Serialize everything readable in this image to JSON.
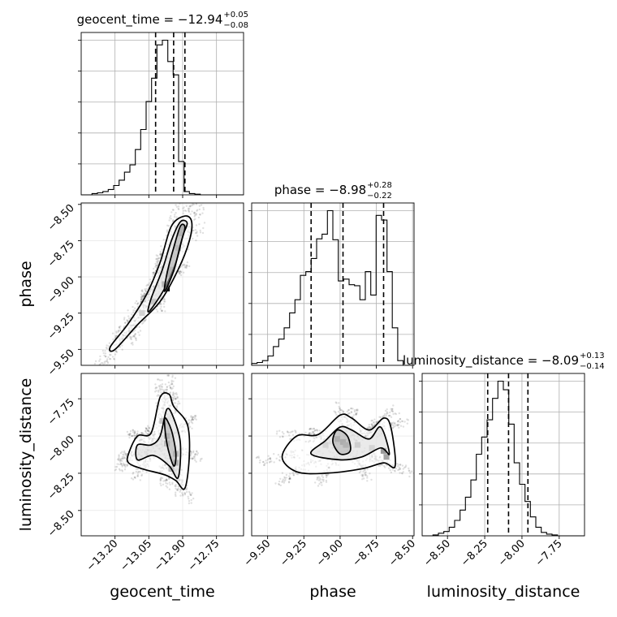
{
  "chart_data": {
    "type": "corner",
    "parameters": [
      "geocent_time",
      "phase",
      "luminosity_distance"
    ],
    "grid": true,
    "titles": [
      {
        "param": "geocent_time",
        "text": "geocent_time = −12.94",
        "upper": "+0.05",
        "lower": "−0.08",
        "median": -12.94,
        "q_low": -13.02,
        "q_high": -12.89
      },
      {
        "param": "phase",
        "text": "phase = −8.98",
        "upper": "+0.28",
        "lower": "−0.22",
        "median": -8.98,
        "q_low": -9.2,
        "q_high": -8.7
      },
      {
        "param": "luminosity_distance",
        "text": "luminosity_distance = −8.09",
        "upper": "+0.13",
        "lower": "−0.14",
        "median": -8.09,
        "q_low": -8.23,
        "q_high": -7.96
      }
    ],
    "axes": {
      "geocent_time": {
        "range": [
          -13.35,
          -12.63
        ],
        "ticks": [
          -13.2,
          -13.05,
          -12.9,
          -12.75
        ],
        "tick_labels": [
          "−13.20",
          "−13.05",
          "−12.90",
          "−12.75"
        ],
        "label": "geocent_time"
      },
      "phase": {
        "range": [
          -9.61,
          -8.49
        ],
        "ticks": [
          -9.5,
          -9.25,
          -9.0,
          -8.75,
          -8.5
        ],
        "tick_labels": [
          "−9.50",
          "−9.25",
          "−9.00",
          "−8.75",
          "−8.50"
        ],
        "label": "phase"
      },
      "luminosity_distance": {
        "range": [
          -8.67,
          -7.58
        ],
        "ticks": [
          -8.5,
          -8.25,
          -8.0,
          -7.75
        ],
        "tick_labels": [
          "−8.50",
          "−8.25",
          "−8.00",
          "−7.75"
        ],
        "label": "luminosity_distance"
      }
    },
    "histograms": {
      "geocent_time": {
        "bins": [
          -13.35,
          -13.326,
          -13.302,
          -13.278,
          -13.254,
          -13.23,
          -13.206,
          -13.182,
          -13.158,
          -13.134,
          -13.11,
          -13.086,
          -13.062,
          -13.038,
          -13.014,
          -12.99,
          -12.966,
          -12.942,
          -12.918,
          -12.894,
          -12.87,
          -12.846,
          -12.822,
          -12.798,
          -12.774,
          -12.75,
          -12.726,
          -12.702,
          -12.678,
          -12.654,
          -12.63
        ],
        "counts": [
          0,
          0,
          2,
          3,
          5,
          8,
          14,
          22,
          34,
          45,
          68,
          98,
          140,
          175,
          225,
          232,
          200,
          180,
          50,
          5,
          2,
          1,
          0,
          0,
          0,
          0,
          0,
          0,
          0,
          0
        ]
      },
      "phase": {
        "bins": [
          -9.61,
          -9.5727,
          -9.5353,
          -9.498,
          -9.4607,
          -9.4233,
          -9.386,
          -9.3487,
          -9.3113,
          -9.274,
          -9.2367,
          -9.1993,
          -9.162,
          -9.1247,
          -9.0873,
          -9.05,
          -9.0127,
          -8.9753,
          -8.938,
          -8.9007,
          -8.8633,
          -8.826,
          -8.7887,
          -8.7513,
          -8.714,
          -8.6767,
          -8.64,
          -8.6027,
          -8.5653,
          -8.528,
          -8.49
        ],
        "counts": [
          2,
          3,
          5,
          10,
          20,
          28,
          40,
          56,
          70,
          96,
          100,
          114,
          135,
          140,
          165,
          134,
          90,
          92,
          86,
          85,
          70,
          100,
          75,
          160,
          155,
          100,
          40,
          5,
          0,
          0
        ]
      },
      "luminosity_distance": {
        "bins": [
          -8.67,
          -8.6337,
          -8.5973,
          -8.561,
          -8.5247,
          -8.4883,
          -8.452,
          -8.4157,
          -8.3793,
          -8.343,
          -8.3067,
          -8.2703,
          -8.234,
          -8.1977,
          -8.1613,
          -8.125,
          -8.0887,
          -8.0523,
          -8.016,
          -7.9797,
          -7.9433,
          -7.907,
          -7.8707,
          -7.8343,
          -7.798,
          -7.7617,
          -7.7253,
          -7.689,
          -7.6527,
          -7.6163,
          -7.58
        ],
        "counts": [
          0,
          0,
          1,
          3,
          5,
          10,
          18,
          30,
          45,
          65,
          95,
          115,
          135,
          160,
          180,
          170,
          130,
          85,
          60,
          40,
          22,
          10,
          4,
          2,
          1,
          0,
          0,
          0,
          0,
          0
        ]
      }
    },
    "pairs": [
      {
        "x": "geocent_time",
        "y": "phase",
        "contours": [
          [
            [
              -13.2,
              -9.5
            ],
            [
              -13.1,
              -9.33
            ],
            [
              -13.0,
              -9.17
            ],
            [
              -12.92,
              -8.95
            ],
            [
              -12.87,
              -8.75
            ],
            [
              -12.86,
              -8.62
            ],
            [
              -12.89,
              -8.58
            ],
            [
              -12.95,
              -8.65
            ],
            [
              -13.0,
              -8.9
            ],
            [
              -13.06,
              -9.12
            ],
            [
              -13.14,
              -9.32
            ],
            [
              -13.22,
              -9.48
            ]
          ],
          [
            [
              -13.05,
              -9.24
            ],
            [
              -12.98,
              -9.08
            ],
            [
              -12.93,
              -8.9
            ],
            [
              -12.9,
              -8.72
            ],
            [
              -12.88,
              -8.63
            ],
            [
              -12.91,
              -8.62
            ],
            [
              -12.95,
              -8.75
            ],
            [
              -12.99,
              -8.95
            ],
            [
              -13.04,
              -9.15
            ]
          ],
          [
            [
              -12.98,
              -9.1
            ],
            [
              -12.94,
              -8.96
            ],
            [
              -12.91,
              -8.78
            ],
            [
              -12.89,
              -8.66
            ],
            [
              -12.91,
              -8.65
            ],
            [
              -12.94,
              -8.8
            ],
            [
              -12.97,
              -8.98
            ]
          ]
        ],
        "density": [
          [
            -12.98,
            -9.05,
            0.9
          ],
          [
            -12.97,
            -9.08,
            1.0
          ],
          [
            -12.96,
            -8.98,
            0.8
          ],
          [
            -12.95,
            -8.95,
            0.7
          ],
          [
            -12.91,
            -8.7,
            0.8
          ],
          [
            -12.9,
            -8.66,
            0.9
          ],
          [
            -12.92,
            -8.8,
            0.6
          ],
          [
            -13.03,
            -9.17,
            0.6
          ],
          [
            -13.08,
            -9.25,
            0.4
          ]
        ]
      },
      {
        "x": "geocent_time",
        "y": "luminosity_distance",
        "contours": [
          [
            [
              -13.14,
              -8.12
            ],
            [
              -13.1,
              -8.0
            ],
            [
              -13.04,
              -7.98
            ],
            [
              -13.0,
              -7.74
            ],
            [
              -12.96,
              -7.72
            ],
            [
              -12.94,
              -7.8
            ],
            [
              -12.88,
              -7.92
            ],
            [
              -12.87,
              -8.12
            ],
            [
              -12.89,
              -8.35
            ],
            [
              -12.93,
              -8.3
            ],
            [
              -12.98,
              -8.26
            ],
            [
              -13.08,
              -8.22
            ],
            [
              -13.14,
              -8.18
            ]
          ],
          [
            [
              -13.1,
              -8.16
            ],
            [
              -13.1,
              -8.06
            ],
            [
              -13.04,
              -8.06
            ],
            [
              -13.0,
              -8.0
            ],
            [
              -12.97,
              -7.82
            ],
            [
              -12.94,
              -7.88
            ],
            [
              -12.91,
              -8.05
            ],
            [
              -12.92,
              -8.28
            ],
            [
              -12.96,
              -8.2
            ],
            [
              -13.03,
              -8.13
            ]
          ],
          [
            [
              -12.98,
              -7.88
            ],
            [
              -12.95,
              -7.96
            ],
            [
              -12.93,
              -8.12
            ],
            [
              -12.94,
              -8.2
            ],
            [
              -12.97,
              -8.05
            ]
          ]
        ],
        "density": [
          [
            -12.97,
            -8.0,
            0.9
          ],
          [
            -12.97,
            -8.05,
            0.8
          ],
          [
            -12.93,
            -8.12,
            0.8
          ],
          [
            -12.93,
            -8.18,
            1.0
          ],
          [
            -12.99,
            -7.9,
            0.5
          ],
          [
            -12.95,
            -8.22,
            0.6
          ]
        ]
      },
      {
        "x": "phase",
        "y": "luminosity_distance",
        "contours": [
          [
            [
              -9.4,
              -8.14
            ],
            [
              -9.3,
              -8.0
            ],
            [
              -9.15,
              -7.99
            ],
            [
              -9.0,
              -7.86
            ],
            [
              -8.92,
              -7.88
            ],
            [
              -8.8,
              -7.96
            ],
            [
              -8.7,
              -7.88
            ],
            [
              -8.65,
              -7.94
            ],
            [
              -8.62,
              -8.2
            ],
            [
              -8.7,
              -8.18
            ],
            [
              -8.85,
              -8.22
            ],
            [
              -9.1,
              -8.25
            ],
            [
              -9.3,
              -8.24
            ]
          ],
          [
            [
              -9.2,
              -8.12
            ],
            [
              -9.1,
              -8.03
            ],
            [
              -9.0,
              -7.94
            ],
            [
              -8.92,
              -7.96
            ],
            [
              -8.8,
              -8.02
            ],
            [
              -8.72,
              -7.94
            ],
            [
              -8.66,
              -8.12
            ],
            [
              -8.72,
              -8.08
            ],
            [
              -8.85,
              -8.14
            ],
            [
              -9.0,
              -8.16
            ]
          ],
          [
            [
              -9.02,
              -7.96
            ],
            [
              -8.95,
              -8.0
            ],
            [
              -8.93,
              -8.1
            ],
            [
              -9.0,
              -8.12
            ],
            [
              -9.05,
              -8.04
            ]
          ]
        ],
        "density": [
          [
            -9.02,
            -8.02,
            0.9
          ],
          [
            -8.98,
            -8.04,
            1.0
          ],
          [
            -8.96,
            -8.06,
            0.8
          ],
          [
            -8.7,
            -8.1,
            0.9
          ],
          [
            -8.68,
            -8.14,
            0.8
          ],
          [
            -9.1,
            -8.06,
            0.4
          ],
          [
            -8.88,
            -8.06,
            0.5
          ],
          [
            -8.78,
            -8.08,
            0.4
          ]
        ]
      }
    ]
  }
}
